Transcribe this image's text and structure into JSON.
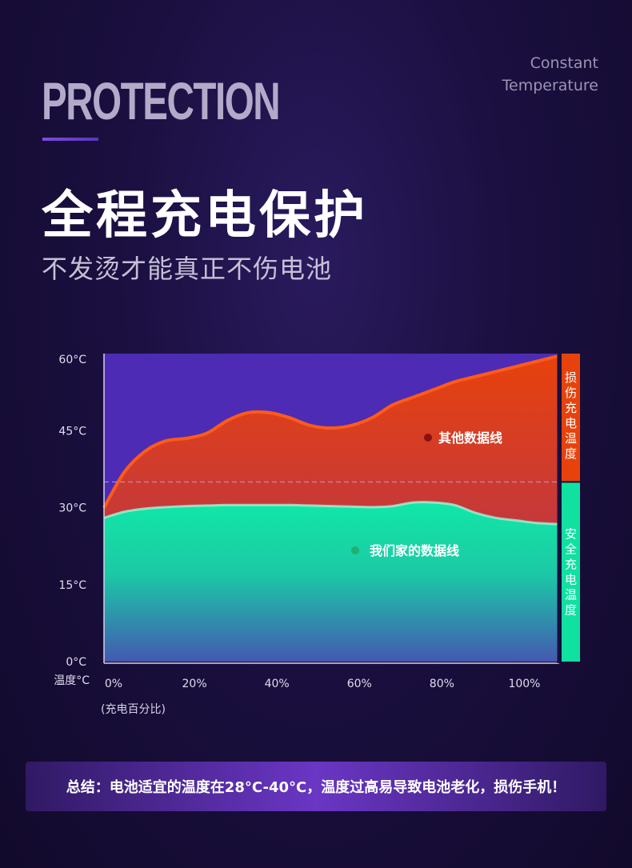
{
  "header": {
    "eyebrow": "PROTECTION",
    "corner_line1": "Constant",
    "corner_line2": "Temperature",
    "title": "全程充电保护",
    "subtitle": "不发烫才能真正不伤电池"
  },
  "colors": {
    "other_line": "#e8420c",
    "our_line": "#10e8a8",
    "chart_bg": "#4d2bb5",
    "danger_band": "#e8420c",
    "safe_band": "#10e0a0"
  },
  "chart_data": {
    "type": "area",
    "ylabel": "温度°C",
    "xlabel": "(充电百分比)",
    "y_ticks": [
      "0°C",
      "15°C",
      "30°C",
      "45°C",
      "60°C"
    ],
    "x_ticks": [
      "0%",
      "20%",
      "40%",
      "60%",
      "80%",
      "100%"
    ],
    "ylim": [
      0,
      60
    ],
    "xlim": [
      0,
      110
    ],
    "threshold": 35,
    "series": [
      {
        "name": "其他数据线",
        "x": [
          0,
          5,
          10,
          15,
          20,
          25,
          30,
          35,
          40,
          45,
          50,
          55,
          60,
          65,
          70,
          75,
          80,
          85,
          90,
          95,
          100,
          105,
          110
        ],
        "y": [
          30,
          37,
          41,
          43,
          43.5,
          44.5,
          47,
          48.5,
          48.5,
          47.5,
          46,
          45.5,
          46,
          47.5,
          50,
          51.5,
          53,
          54.5,
          55.5,
          56.5,
          57.5,
          58.5,
          59.5
        ]
      },
      {
        "name": "我们家的数据线",
        "x": [
          0,
          5,
          10,
          15,
          20,
          25,
          30,
          35,
          40,
          45,
          50,
          55,
          60,
          65,
          70,
          75,
          80,
          85,
          90,
          95,
          100,
          105,
          110
        ],
        "y": [
          28,
          29.2,
          29.8,
          30.1,
          30.3,
          30.4,
          30.5,
          30.5,
          30.5,
          30.5,
          30.4,
          30.3,
          30.2,
          30.1,
          30.3,
          31,
          31,
          30.5,
          29,
          28,
          27.5,
          27,
          26.8
        ]
      }
    ],
    "danger_label": "损伤充电温度",
    "safe_label": "安全充电温度"
  },
  "summary": "总结：电池适宜的温度在28°C-40°C，温度过高易导致电池老化，损伤手机！"
}
